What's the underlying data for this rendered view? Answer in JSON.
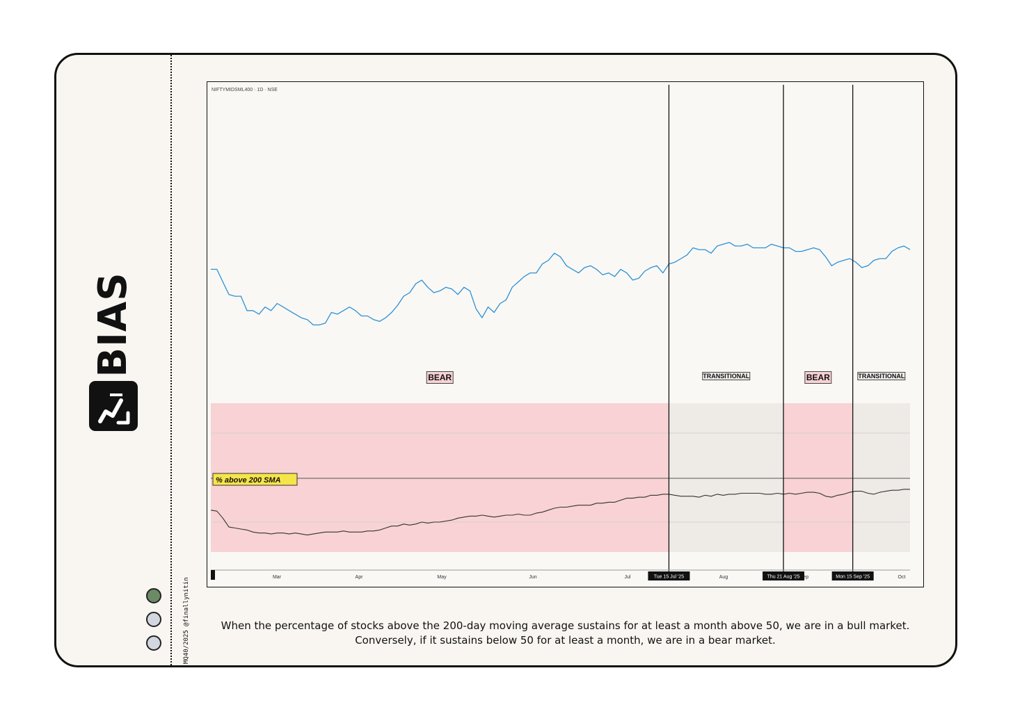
{
  "brand": {
    "name": "BIAS"
  },
  "credit": "MQ40/2025 @finallynitin",
  "dots": [
    "#6b8a65",
    "#d3d8e0",
    "#d3d8e0"
  ],
  "caption": "When the percentage of stocks above the 200-day moving average sustains for at least a month above 50, we are in a bull market. Conversely, if it sustains below 50 for at least a month, we are in a bear market.",
  "chart_data": {
    "type": "line",
    "title": "NIFTYMIDSML400 · 1D · NSE",
    "x_axis": {
      "ticks": [
        "Mar",
        "Apr",
        "May",
        "Jun",
        "Jul",
        "Aug",
        "Sep",
        "Oct"
      ],
      "xlim": [
        0,
        232
      ]
    },
    "markers": [
      {
        "label": "Tue 15 Jul '25",
        "x": 152
      },
      {
        "label": "Thu 21 Aug '25",
        "x": 190
      },
      {
        "label": "Mon 15 Sep '25",
        "x": 213
      }
    ],
    "regimes": [
      {
        "label": "BEAR",
        "start": 0,
        "end": 152,
        "color": "#f8d2d4"
      },
      {
        "label": "TRANSITIONAL",
        "start": 152,
        "end": 190,
        "color": "#eeebe7"
      },
      {
        "label": "BEAR",
        "start": 190,
        "end": 213,
        "color": "#f8d2d4"
      },
      {
        "label": "TRANSITIONAL",
        "start": 213,
        "end": 232,
        "color": "#eeebe7"
      }
    ],
    "series": [
      {
        "name": "NIFTYMIDSML400",
        "color": "#2a90d8",
        "ylim": [
          0,
          100
        ],
        "values": [
          [
            0,
            32
          ],
          [
            2,
            32
          ],
          [
            4,
            25
          ],
          [
            6,
            18
          ],
          [
            8,
            17
          ],
          [
            10,
            17
          ],
          [
            12,
            9
          ],
          [
            14,
            9
          ],
          [
            16,
            7
          ],
          [
            18,
            11
          ],
          [
            20,
            9
          ],
          [
            22,
            13
          ],
          [
            24,
            11
          ],
          [
            26,
            9
          ],
          [
            28,
            7
          ],
          [
            30,
            5
          ],
          [
            32,
            4
          ],
          [
            34,
            1
          ],
          [
            36,
            1
          ],
          [
            38,
            2
          ],
          [
            40,
            8
          ],
          [
            42,
            7
          ],
          [
            44,
            9
          ],
          [
            46,
            11
          ],
          [
            48,
            9
          ],
          [
            50,
            6
          ],
          [
            52,
            6
          ],
          [
            54,
            4
          ],
          [
            56,
            3
          ],
          [
            58,
            5
          ],
          [
            60,
            8
          ],
          [
            62,
            12
          ],
          [
            64,
            17
          ],
          [
            66,
            19
          ],
          [
            68,
            24
          ],
          [
            70,
            26
          ],
          [
            72,
            22
          ],
          [
            74,
            19
          ],
          [
            76,
            20
          ],
          [
            78,
            22
          ],
          [
            80,
            21
          ],
          [
            82,
            18
          ],
          [
            84,
            22
          ],
          [
            86,
            20
          ],
          [
            88,
            10
          ],
          [
            90,
            5
          ],
          [
            92,
            11
          ],
          [
            94,
            8
          ],
          [
            96,
            13
          ],
          [
            98,
            15
          ],
          [
            100,
            22
          ],
          [
            102,
            25
          ],
          [
            104,
            28
          ],
          [
            106,
            30
          ],
          [
            108,
            30
          ],
          [
            110,
            35
          ],
          [
            112,
            37
          ],
          [
            114,
            41
          ],
          [
            116,
            39
          ],
          [
            118,
            34
          ],
          [
            120,
            32
          ],
          [
            122,
            30
          ],
          [
            124,
            33
          ],
          [
            126,
            34
          ],
          [
            128,
            32
          ],
          [
            130,
            29
          ],
          [
            132,
            30
          ],
          [
            134,
            28
          ],
          [
            136,
            32
          ],
          [
            138,
            30
          ],
          [
            140,
            26
          ],
          [
            142,
            27
          ],
          [
            144,
            31
          ],
          [
            146,
            33
          ],
          [
            148,
            34
          ],
          [
            150,
            30
          ],
          [
            152,
            35
          ],
          [
            154,
            36
          ],
          [
            156,
            38
          ],
          [
            158,
            40
          ],
          [
            160,
            44
          ],
          [
            162,
            43
          ],
          [
            164,
            43
          ],
          [
            166,
            41
          ],
          [
            168,
            45
          ],
          [
            170,
            46
          ],
          [
            172,
            47
          ],
          [
            174,
            45
          ],
          [
            176,
            45
          ],
          [
            178,
            46
          ],
          [
            180,
            44
          ],
          [
            182,
            44
          ],
          [
            184,
            44
          ],
          [
            186,
            46
          ],
          [
            188,
            45
          ],
          [
            190,
            44
          ],
          [
            192,
            44
          ],
          [
            194,
            42
          ],
          [
            196,
            42
          ],
          [
            198,
            43
          ],
          [
            200,
            44
          ],
          [
            202,
            43
          ],
          [
            204,
            39
          ],
          [
            206,
            34
          ],
          [
            208,
            36
          ],
          [
            210,
            37
          ],
          [
            212,
            38
          ],
          [
            214,
            36
          ],
          [
            216,
            33
          ],
          [
            218,
            34
          ],
          [
            220,
            37
          ],
          [
            222,
            38
          ],
          [
            224,
            38
          ],
          [
            226,
            42
          ],
          [
            228,
            44
          ],
          [
            230,
            45
          ],
          [
            232,
            43
          ]
        ]
      },
      {
        "name": "% above 200 SMA",
        "color": "#333333",
        "ylim": [
          0,
          100
        ],
        "values": [
          [
            0,
            33
          ],
          [
            2,
            32
          ],
          [
            4,
            25
          ],
          [
            6,
            16
          ],
          [
            8,
            15
          ],
          [
            10,
            14
          ],
          [
            12,
            13
          ],
          [
            14,
            11
          ],
          [
            16,
            10
          ],
          [
            18,
            10
          ],
          [
            20,
            9
          ],
          [
            22,
            10
          ],
          [
            24,
            10
          ],
          [
            26,
            9
          ],
          [
            28,
            10
          ],
          [
            30,
            9
          ],
          [
            32,
            8
          ],
          [
            34,
            9
          ],
          [
            36,
            10
          ],
          [
            38,
            11
          ],
          [
            40,
            11
          ],
          [
            42,
            11
          ],
          [
            44,
            12
          ],
          [
            46,
            11
          ],
          [
            48,
            11
          ],
          [
            50,
            11
          ],
          [
            52,
            12
          ],
          [
            54,
            12
          ],
          [
            56,
            13
          ],
          [
            58,
            15
          ],
          [
            60,
            17
          ],
          [
            62,
            17
          ],
          [
            64,
            19
          ],
          [
            66,
            18
          ],
          [
            68,
            19
          ],
          [
            70,
            21
          ],
          [
            72,
            20
          ],
          [
            74,
            21
          ],
          [
            76,
            21
          ],
          [
            78,
            22
          ],
          [
            80,
            23
          ],
          [
            82,
            25
          ],
          [
            84,
            26
          ],
          [
            86,
            27
          ],
          [
            88,
            27
          ],
          [
            90,
            28
          ],
          [
            92,
            27
          ],
          [
            94,
            26
          ],
          [
            96,
            27
          ],
          [
            98,
            28
          ],
          [
            100,
            28
          ],
          [
            102,
            29
          ],
          [
            104,
            28
          ],
          [
            106,
            28
          ],
          [
            108,
            30
          ],
          [
            110,
            31
          ],
          [
            112,
            33
          ],
          [
            114,
            35
          ],
          [
            116,
            36
          ],
          [
            118,
            36
          ],
          [
            120,
            37
          ],
          [
            122,
            38
          ],
          [
            124,
            38
          ],
          [
            126,
            38
          ],
          [
            128,
            40
          ],
          [
            130,
            40
          ],
          [
            132,
            41
          ],
          [
            134,
            41
          ],
          [
            136,
            43
          ],
          [
            138,
            45
          ],
          [
            140,
            45
          ],
          [
            142,
            46
          ],
          [
            144,
            46
          ],
          [
            146,
            48
          ],
          [
            148,
            48
          ],
          [
            150,
            49
          ],
          [
            152,
            49
          ],
          [
            154,
            48
          ],
          [
            156,
            47
          ],
          [
            158,
            47
          ],
          [
            160,
            47
          ],
          [
            162,
            46
          ],
          [
            164,
            48
          ],
          [
            166,
            47
          ],
          [
            168,
            49
          ],
          [
            170,
            48
          ],
          [
            172,
            49
          ],
          [
            174,
            49
          ],
          [
            176,
            50
          ],
          [
            178,
            50
          ],
          [
            180,
            50
          ],
          [
            182,
            50
          ],
          [
            184,
            49
          ],
          [
            186,
            49
          ],
          [
            188,
            50
          ],
          [
            190,
            49
          ],
          [
            192,
            50
          ],
          [
            194,
            49
          ],
          [
            196,
            50
          ],
          [
            198,
            51
          ],
          [
            200,
            51
          ],
          [
            202,
            50
          ],
          [
            204,
            47
          ],
          [
            206,
            46
          ],
          [
            208,
            48
          ],
          [
            210,
            49
          ],
          [
            212,
            51
          ],
          [
            214,
            52
          ],
          [
            216,
            52
          ],
          [
            218,
            50
          ],
          [
            220,
            49
          ],
          [
            222,
            51
          ],
          [
            224,
            52
          ],
          [
            226,
            53
          ],
          [
            228,
            53
          ],
          [
            230,
            54
          ],
          [
            232,
            54
          ]
        ]
      }
    ],
    "annotations": [
      "% above 200 SMA"
    ]
  }
}
